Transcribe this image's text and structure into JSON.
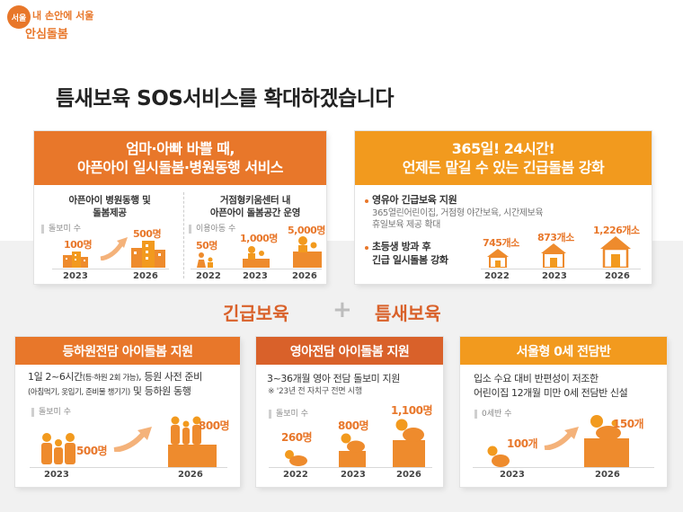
{
  "logo": {
    "badge": "서울",
    "line1": "내 손안에 서울",
    "line2": "안심돌봄"
  },
  "title": "틈새보육 SOS서비스를 확대하겠습니다",
  "middle": {
    "left": "긴급보육",
    "right": "틈새보육"
  },
  "colors": {
    "orange": "#e8772a",
    "yellow": "#f29a1e",
    "dark_orange": "#d9612a",
    "band": "#f1f1f1"
  },
  "card1": {
    "title_line1": "엄마·아빠 바쁠 때,",
    "title_line2": "아픈아이 일시돌봄·병원동행 서비스",
    "left": {
      "heading_line1": "아픈아이 병원동행 및",
      "heading_line2": "돌봄제공",
      "unit": "돌보미 수",
      "values": [
        {
          "year": "2023",
          "label": "100명",
          "value": 100
        },
        {
          "year": "2026",
          "label": "500명",
          "value": 500
        }
      ]
    },
    "right": {
      "heading_line1": "거점형키움센터 내",
      "heading_line2": "아픈아이 돌봄공간 운영",
      "unit": "이용아동 수",
      "values": [
        {
          "year": "2022",
          "label": "50명",
          "value": 50
        },
        {
          "year": "2023",
          "label": "1,000명",
          "value": 1000
        },
        {
          "year": "2026",
          "label": "5,000명",
          "value": 5000
        }
      ]
    }
  },
  "card2": {
    "title_line1": "365일! 24시간!",
    "title_line2": "언제든 맡길 수 있는 긴급돌봄 강화",
    "bullet1": {
      "main": "영유아 긴급보육 지원",
      "sub1": "365열린어린이집, 거점형 야간보육, 시간제보육",
      "sub2": "휴일보육 제공 확대"
    },
    "bullet2": {
      "line1": "초등생 방과 후",
      "line2": "긴급 일시돌봄 강화"
    },
    "values": [
      {
        "year": "2022",
        "label": "745개소",
        "value": 745
      },
      {
        "year": "2023",
        "label": "873개소",
        "value": 873
      },
      {
        "year": "2026",
        "label": "1,226개소",
        "value": 1226
      }
    ]
  },
  "card3": {
    "title": "등하원전담 아이돌봄 지원",
    "desc_line1_a": "1일 2~6시간",
    "desc_line1_b": "(등·하원 2회 가능)",
    "desc_line1_c": ", 등원 사전 준비",
    "desc_line2_a": "(아침먹기, 옷입기, 준비물 챙기기)",
    "desc_line2_b": " 및 등하원 동행",
    "unit": "돌보미 수",
    "values": [
      {
        "year": "2023",
        "label": "500명",
        "value": 500
      },
      {
        "year": "2026",
        "label": "800명",
        "value": 800
      }
    ]
  },
  "card4": {
    "title": "영아전담 아이돌봄 지원",
    "desc": "3~36개월 영아 전담 돌보미 지원",
    "note": "※ '23년 전 자치구 전면 시행",
    "unit": "돌보미 수",
    "values": [
      {
        "year": "2022",
        "label": "260명",
        "value": 260
      },
      {
        "year": "2023",
        "label": "800명",
        "value": 800
      },
      {
        "year": "2026",
        "label": "1,100명",
        "value": 1100
      }
    ]
  },
  "card5": {
    "title": "서울형 0세 전담반",
    "desc_line1": "입소 수요 대비 반편성이 저조한",
    "desc_line2": "어린이집 12개월 미만 0세 전담반 신설",
    "unit": "0세반 수",
    "values": [
      {
        "year": "2023",
        "label": "100개",
        "value": 100
      },
      {
        "year": "2026",
        "label": "150개",
        "value": 150
      }
    ]
  }
}
